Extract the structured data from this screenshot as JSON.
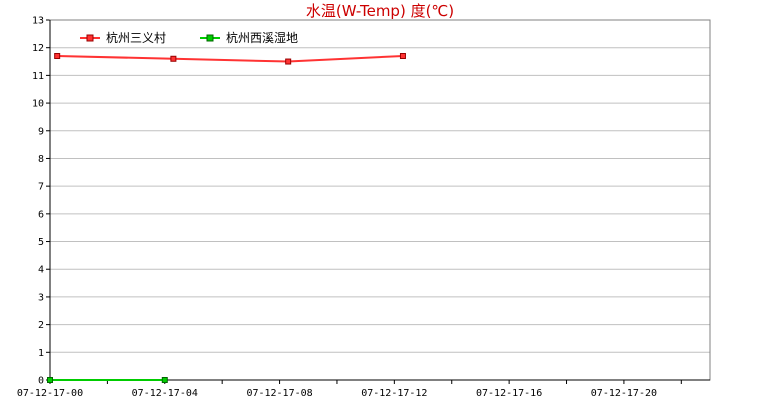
{
  "chart_data": {
    "type": "line",
    "title": "水温(W-Temp) 度(℃)",
    "title_color": "#cc0000",
    "ylim": [
      0,
      13
    ],
    "y_ticks": [
      "0",
      "1",
      "2",
      "3",
      "4",
      "5",
      "6",
      "7",
      "8",
      "9",
      "10",
      "11",
      "12",
      "13"
    ],
    "x_range_hours": [
      0,
      23
    ],
    "x_tick_labels": [
      {
        "hour": 0,
        "label": "07-12-17-00"
      },
      {
        "hour": 4,
        "label": "07-12-17-04"
      },
      {
        "hour": 8,
        "label": "07-12-17-08"
      },
      {
        "hour": 12,
        "label": "07-12-17-12"
      },
      {
        "hour": 16,
        "label": "07-12-17-16"
      },
      {
        "hour": 20,
        "label": "07-12-17-20"
      }
    ],
    "grid": "horizontal",
    "legend_position": "top-left",
    "series": [
      {
        "name": "杭州三义村",
        "color": "#ff3333",
        "marker_color": "#990000",
        "points": [
          {
            "hour": 0.25,
            "value": 11.7
          },
          {
            "hour": 4.3,
            "value": 11.6
          },
          {
            "hour": 8.3,
            "value": 11.5
          },
          {
            "hour": 12.3,
            "value": 11.7
          }
        ]
      },
      {
        "name": "杭州西溪湿地",
        "color": "#00cc00",
        "marker_color": "#006600",
        "points": [
          {
            "hour": 0,
            "value": 0
          },
          {
            "hour": 4,
            "value": 0
          }
        ]
      }
    ]
  }
}
